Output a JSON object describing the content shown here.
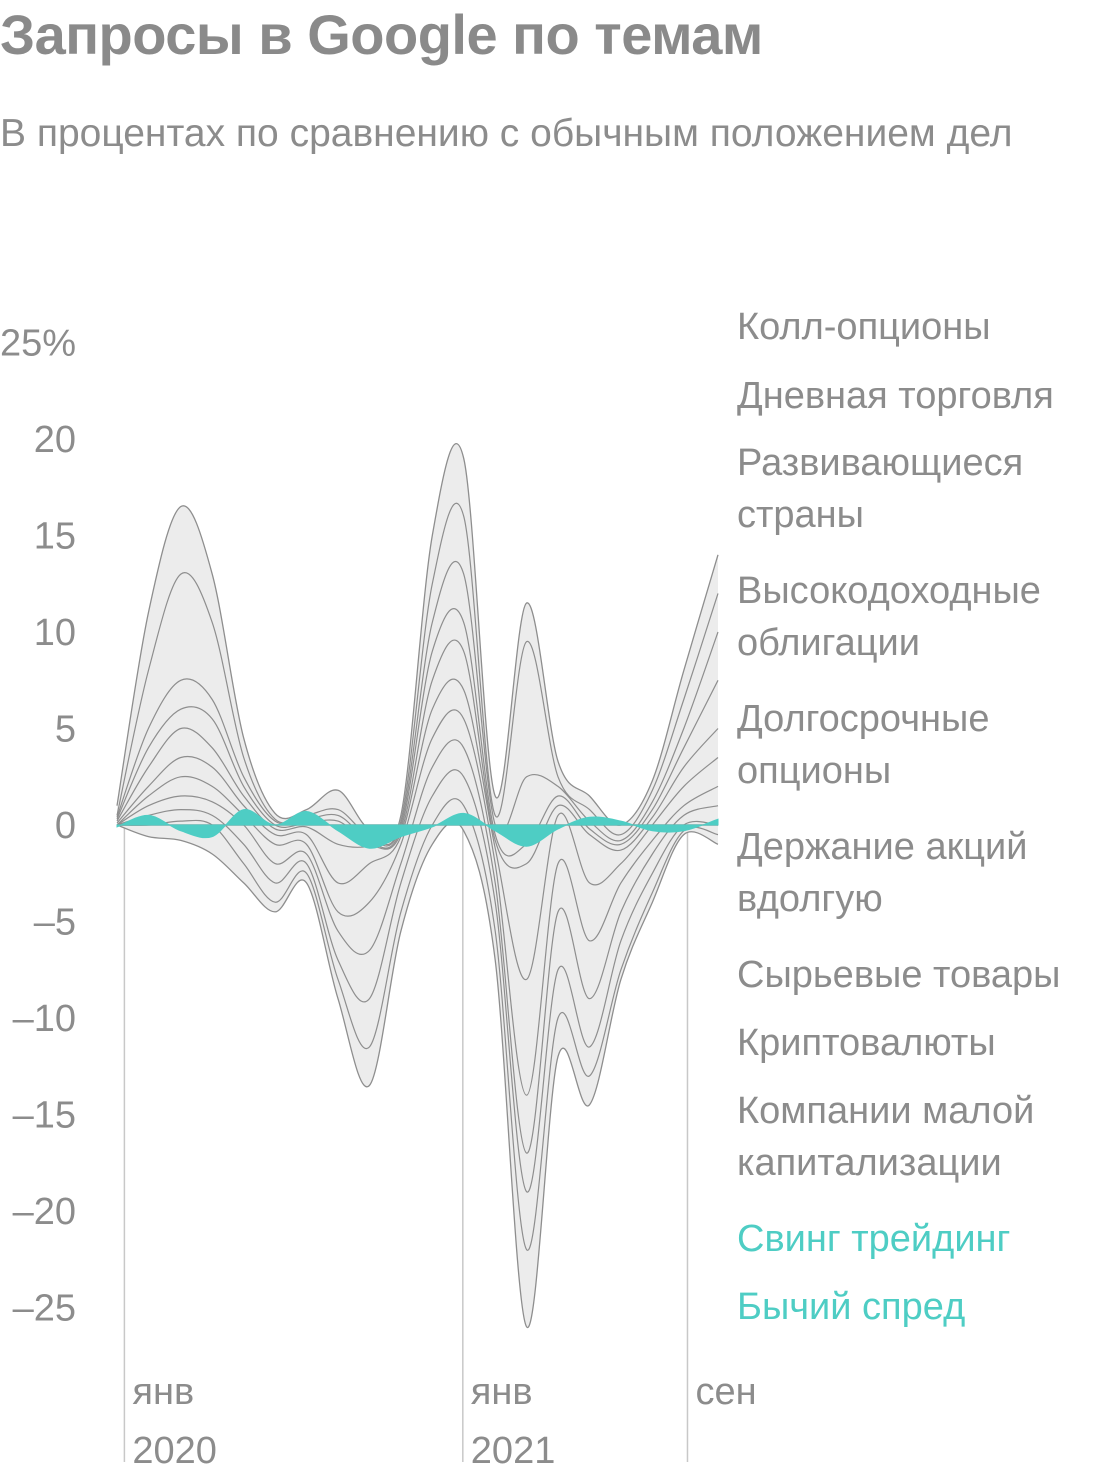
{
  "title": "Запросы в Google по темам",
  "subtitle": "В процентах по сравнению с обычным положением дел",
  "colors": {
    "band": "#ececec",
    "line": "#8e8e8e",
    "accent": "#4ecdc4",
    "text": "#8c8c8c"
  },
  "chart_data": {
    "type": "area",
    "ylim": [
      -27,
      27
    ],
    "yticks": [
      25,
      20,
      15,
      10,
      5,
      0,
      -5,
      -10,
      -15,
      -20,
      -25
    ],
    "ytick_labels": [
      "25%",
      "20",
      "15",
      "10",
      "5",
      "0",
      "–5",
      "–10",
      "–15",
      "–20",
      "–25"
    ],
    "x_range": [
      "2019-12-24",
      "2021-10-04"
    ],
    "x_ticks": [
      {
        "date": "2020-01-01",
        "month": "янв",
        "year": "2020"
      },
      {
        "date": "2021-01-01",
        "month": "янв",
        "year": "2021"
      },
      {
        "date": "2021-09-01",
        "month": "сен",
        "year": ""
      }
    ],
    "legend": {
      "placement": "right",
      "items": [
        {
          "label": "Колл-опционы",
          "color": "#8c8c8c"
        },
        {
          "label": "Дневная торговля",
          "color": "#8c8c8c"
        },
        {
          "label": "Развивающиеся страны",
          "color": "#8c8c8c"
        },
        {
          "label": "Высокодоходные облигации",
          "color": "#8c8c8c"
        },
        {
          "label": "Долгосрочные опционы",
          "color": "#8c8c8c"
        },
        {
          "label": "Держание акций вдолгую",
          "color": "#8c8c8c"
        },
        {
          "label": "Сырьевые товары",
          "color": "#8c8c8c"
        },
        {
          "label": "Криптовалюты",
          "color": "#8c8c8c"
        },
        {
          "label": "Компании малой капитализации",
          "color": "#8c8c8c"
        },
        {
          "label": "Свинг трейдинг",
          "color": "#4ecdc4"
        },
        {
          "label": "Бычий спред",
          "color": "#4ecdc4"
        }
      ]
    },
    "x": [
      "2019-12-24",
      "2020-01-27",
      "2020-03-02",
      "2020-04-05",
      "2020-05-09",
      "2020-06-12",
      "2020-07-16",
      "2020-08-19",
      "2020-09-22",
      "2020-10-26",
      "2020-11-29",
      "2021-01-02",
      "2021-02-05",
      "2021-03-11",
      "2021-04-14",
      "2021-05-18",
      "2021-06-21",
      "2021-07-25",
      "2021-08-28",
      "2021-10-04"
    ],
    "envelope_upper": [
      1.0,
      11.0,
      16.5,
      13.0,
      4.5,
      0.6,
      0.8,
      1.8,
      -0.2,
      0.5,
      15.0,
      19.0,
      1.5,
      11.5,
      3.3,
      1.5,
      0.0,
      2.3,
      8.0,
      14.0
    ],
    "envelope_lower": [
      0.0,
      -0.6,
      -0.8,
      -1.5,
      -3.0,
      -4.5,
      -3.0,
      -9.0,
      -13.5,
      -5.5,
      -1.0,
      -0.3,
      -7.0,
      -26.0,
      -12.0,
      -14.5,
      -8.0,
      -4.0,
      -0.5,
      -1.0
    ],
    "series": [
      {
        "values": [
          0.5,
          8.0,
          13.0,
          10.5,
          3.5,
          0.3,
          0.5,
          0.8,
          -0.5,
          0.2,
          12.5,
          16.0,
          0.5,
          9.5,
          2.5,
          0.8,
          -0.5,
          1.8,
          6.5,
          12.0
        ]
      },
      {
        "values": [
          0.4,
          5.0,
          7.5,
          6.5,
          2.5,
          0.2,
          0.3,
          0.5,
          -0.7,
          0.0,
          10.5,
          13.0,
          0.0,
          2.5,
          2.0,
          0.2,
          -0.8,
          1.2,
          5.0,
          10.0
        ]
      },
      {
        "values": [
          0.3,
          4.0,
          6.0,
          5.5,
          2.0,
          0.0,
          0.1,
          0.2,
          -0.9,
          -0.2,
          9.0,
          10.5,
          -0.5,
          -1.0,
          1.5,
          -0.2,
          -1.0,
          0.8,
          4.0,
          7.5
        ]
      },
      {
        "values": [
          0.2,
          3.0,
          5.0,
          4.0,
          1.5,
          -0.2,
          -0.1,
          -1.0,
          -1.1,
          -0.4,
          7.5,
          9.0,
          -0.8,
          -2.0,
          1.0,
          -0.5,
          -1.3,
          0.4,
          3.0,
          5.0
        ]
      },
      {
        "values": [
          0.1,
          2.0,
          3.5,
          3.0,
          1.0,
          -0.5,
          -0.5,
          -3.0,
          -2.0,
          -0.6,
          6.0,
          7.0,
          -1.2,
          -8.0,
          0.5,
          -3.0,
          -2.0,
          0.0,
          2.0,
          3.5
        ]
      },
      {
        "values": [
          0.0,
          1.5,
          2.5,
          2.0,
          0.5,
          -1.0,
          -1.0,
          -4.5,
          -4.0,
          -1.0,
          4.5,
          5.5,
          -2.0,
          -14.0,
          -2.0,
          -6.0,
          -3.0,
          -0.8,
          1.0,
          2.0
        ]
      },
      {
        "values": [
          0.0,
          1.0,
          1.5,
          1.2,
          0.0,
          -2.0,
          -1.5,
          -5.5,
          -6.5,
          -2.0,
          3.0,
          4.0,
          -3.0,
          -17.0,
          -4.5,
          -9.0,
          -4.5,
          -1.5,
          0.5,
          1.0
        ]
      },
      {
        "values": [
          0.0,
          0.5,
          0.8,
          0.5,
          -1.0,
          -3.0,
          -2.0,
          -7.0,
          -9.0,
          -3.0,
          1.5,
          2.5,
          -4.0,
          -19.0,
          -7.5,
          -11.5,
          -6.0,
          -2.5,
          0.0,
          0.0
        ]
      },
      {
        "values": [
          0.0,
          0.0,
          0.2,
          0.0,
          -2.0,
          -4.0,
          -2.5,
          -8.0,
          -11.5,
          -4.5,
          0.0,
          1.0,
          -5.5,
          -22.0,
          -10.0,
          -13.0,
          -7.5,
          -3.5,
          -0.3,
          -0.5
        ]
      }
    ],
    "accent_series": {
      "name": "Бычий спред",
      "values": [
        -0.1,
        0.5,
        -0.3,
        -0.6,
        0.8,
        0.0,
        0.7,
        -0.3,
        -1.2,
        -0.6,
        -0.1,
        0.6,
        -0.3,
        -1.1,
        -0.2,
        0.4,
        0.2,
        -0.3,
        -0.3,
        0.3
      ]
    }
  }
}
